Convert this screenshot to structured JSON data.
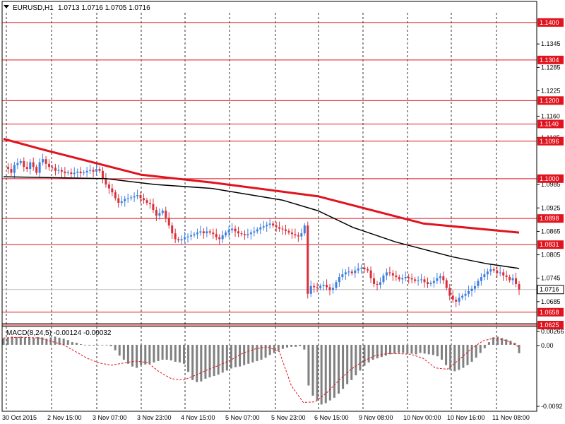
{
  "header": {
    "symbol": "EURUSD,H1",
    "ohlc": "1.0713 1.0716 1.0705 1.0716"
  },
  "macd_header": "MACD(8,24,5) -0.00124 -0.00032",
  "colors": {
    "up": "#3d7fe0",
    "down": "#d9303a",
    "level": "#e0141e",
    "ma_slow": "#e0141e",
    "ma_fast": "#000000",
    "hist": "#808080",
    "signal": "#e0141e"
  },
  "chart_data": [
    {
      "type": "candlestick",
      "title": "",
      "y_range": [
        1.0625,
        1.1425
      ],
      "y_ticks": [
        "1.1345",
        "1.1285",
        "1.1225",
        "1.1160",
        "1.1105",
        "1.0985",
        "1.0925",
        "1.0865",
        "1.0805",
        "1.0745",
        "1.0685"
      ],
      "x_ticks": [
        "30 Oct 2015",
        "2 Nov 15:00",
        "3 Nov 07:00",
        "3 Nov 23:00",
        "4 Nov 15:00",
        "5 Nov 07:00",
        "5 Nov 23:00",
        "6 Nov 15:00",
        "9 Nov 08:00",
        "10 Nov 00:00",
        "10 Nov 16:00",
        "11 Nov 08:00"
      ],
      "levels": [
        {
          "label": "1.1400",
          "value": 1.14
        },
        {
          "label": "1.1304",
          "value": 1.1304
        },
        {
          "label": "1.1200",
          "value": 1.12
        },
        {
          "label": "1.1140",
          "value": 1.114
        },
        {
          "label": "1.1096",
          "value": 1.1096
        },
        {
          "label": "1.1000",
          "value": 1.1
        },
        {
          "label": "1.0898",
          "value": 1.0898
        },
        {
          "label": "1.0831",
          "value": 1.0831
        },
        {
          "label": "1.0658",
          "value": 1.0658
        },
        {
          "label": "1.0625",
          "value": 1.0625
        }
      ],
      "current_price": "1.0716",
      "current_value": 1.0716,
      "close_path": [
        1.103,
        1.1025,
        1.1015,
        1.1035,
        1.104,
        1.1045,
        1.103,
        1.1025,
        1.1042,
        1.103,
        1.1015,
        1.1042,
        1.105,
        1.1038,
        1.103,
        1.1028,
        1.102,
        1.1022,
        1.1018,
        1.1014,
        1.1016,
        1.1012,
        1.1015,
        1.1018,
        1.1014,
        1.1016,
        1.102,
        1.1022,
        1.1018,
        1.1025,
        1.102,
        1.1,
        1.0985,
        1.0975,
        1.0965,
        1.095,
        1.0938,
        1.0942,
        1.0948,
        1.095,
        1.0952,
        1.0955,
        1.0958,
        1.095,
        1.0945,
        1.0938,
        1.0935,
        1.092,
        1.0905,
        1.0912,
        1.0918,
        1.09,
        1.088,
        1.086,
        1.0845,
        1.0842,
        1.0845,
        1.085,
        1.0852,
        1.0855,
        1.0858,
        1.0862,
        1.0865,
        1.086,
        1.0865,
        1.0862,
        1.0858,
        1.085,
        1.0845,
        1.0855,
        1.0862,
        1.0868,
        1.0872,
        1.0865,
        1.086,
        1.0858,
        1.0855,
        1.0858,
        1.0862,
        1.0865,
        1.087,
        1.0875,
        1.0878,
        1.0882,
        1.0885,
        1.088,
        1.0876,
        1.0872,
        1.087,
        1.0866,
        1.0862,
        1.0858,
        1.0855,
        1.0852,
        1.086,
        1.088,
        1.0705,
        1.0725,
        1.0722,
        1.072,
        1.0725,
        1.0728,
        1.0722,
        1.0715,
        1.072,
        1.0735,
        1.0748,
        1.0755,
        1.076,
        1.0762,
        1.0758,
        1.0765,
        1.077,
        1.0772,
        1.0768,
        1.0765,
        1.0745,
        1.073,
        1.0728,
        1.0735,
        1.0752,
        1.076,
        1.0758,
        1.0752,
        1.0748,
        1.0742,
        1.0745,
        1.0748,
        1.0745,
        1.0742,
        1.0738,
        1.074,
        1.0742,
        1.0735,
        1.073,
        1.0733,
        1.0738,
        1.0745,
        1.075,
        1.074,
        1.072,
        1.07,
        1.069,
        1.0685,
        1.0695,
        1.07,
        1.0705,
        1.0712,
        1.0718,
        1.0725,
        1.0738,
        1.0748,
        1.0755,
        1.0762,
        1.0768,
        1.0765,
        1.0758,
        1.076,
        1.0752,
        1.0748,
        1.074,
        1.0745,
        1.073,
        1.0716
      ],
      "ma_slow": [
        [
          5,
          1.1102
        ],
        [
          60,
          1.1075
        ],
        [
          200,
          1.101
        ],
        [
          300,
          1.099
        ],
        [
          450,
          1.0955
        ],
        [
          600,
          1.0885
        ],
        [
          735,
          1.0862
        ]
      ],
      "ma_fast": [
        [
          5,
          1.1005
        ],
        [
          150,
          1.1
        ],
        [
          220,
          1.0985
        ],
        [
          300,
          1.0975
        ],
        [
          400,
          1.0945
        ],
        [
          450,
          1.0918
        ],
        [
          500,
          1.0875
        ],
        [
          560,
          1.0838
        ],
        [
          640,
          1.08
        ],
        [
          690,
          1.0782
        ],
        [
          735,
          1.077
        ]
      ]
    },
    {
      "type": "bar",
      "title": "",
      "y_range": [
        -0.0098,
        0.0027
      ],
      "y_ticks": [
        "0.00266",
        "0.00",
        "-0.0092"
      ],
      "hist": [
        0.00095,
        0.0011,
        0.0012,
        0.00115,
        0.0012,
        0.0011,
        0.00105,
        0.001,
        0.00115,
        0.0011,
        0.0009,
        0.0011,
        0.0012,
        0.00105,
        0.0009,
        0.0007,
        0.0004,
        0.0003,
        0.0001,
        0.0,
        -0.0001,
        -0.0001,
        0.0,
        0.0,
        0.0,
        -0.0002,
        -0.0008,
        -0.0016,
        -0.0022,
        -0.0028,
        -0.0032,
        -0.0034,
        -0.003,
        -0.0029,
        -0.0028,
        -0.0026,
        -0.0024,
        -0.0022,
        -0.0022,
        -0.0023,
        -0.0025,
        -0.0026,
        -0.0028,
        -0.004,
        -0.0052,
        -0.0055,
        -0.0054,
        -0.005,
        -0.0048,
        -0.0046,
        -0.0044,
        -0.0041,
        -0.0038,
        -0.0035,
        -0.0033,
        -0.0032,
        -0.003,
        -0.0028,
        -0.0026,
        -0.0024,
        -0.0022,
        -0.0019,
        -0.0015,
        -0.0012,
        -0.0009,
        -0.0006,
        -0.0004,
        -0.0003,
        -0.0003,
        -0.0002,
        -0.0007,
        -0.006,
        -0.0075,
        -0.0082,
        -0.0088,
        -0.0086,
        -0.0082,
        -0.0078,
        -0.0072,
        -0.0065,
        -0.0058,
        -0.0052,
        -0.0045,
        -0.0038,
        -0.0031,
        -0.0026,
        -0.0022,
        -0.002,
        -0.0018,
        -0.0016,
        -0.0014,
        -0.0013,
        -0.0012,
        -0.0012,
        -0.0013,
        -0.0013,
        -0.0014,
        -0.0012,
        -0.0013,
        -0.0014,
        -0.0015,
        -0.0017,
        -0.0022,
        -0.003,
        -0.0037,
        -0.0039,
        -0.0037,
        -0.0034,
        -0.003,
        -0.0025,
        -0.0019,
        -0.0012,
        -0.0005,
        0.0004,
        0.0011,
        0.0012,
        0.001,
        0.0008,
        0.0006,
        0.0003,
        -0.00124
      ],
      "signal": [
        0.001,
        0.0011,
        0.0011,
        0.001,
        0.0005,
        0.0,
        -0.001,
        -0.002,
        -0.0027,
        -0.003,
        -0.0027,
        -0.0024,
        -0.0026,
        -0.004,
        -0.005,
        -0.0052,
        -0.0045,
        -0.0037,
        -0.003,
        -0.0022,
        -0.0012,
        -0.0006,
        -0.0003,
        -0.001,
        -0.006,
        -0.0085,
        -0.0084,
        -0.007,
        -0.0052,
        -0.0036,
        -0.0024,
        -0.0016,
        -0.0013,
        -0.0013,
        -0.0014,
        -0.002,
        -0.0034,
        -0.0036,
        -0.0022,
        -0.0006,
        0.0006,
        0.001,
        0.0006,
        -0.00032
      ]
    }
  ]
}
